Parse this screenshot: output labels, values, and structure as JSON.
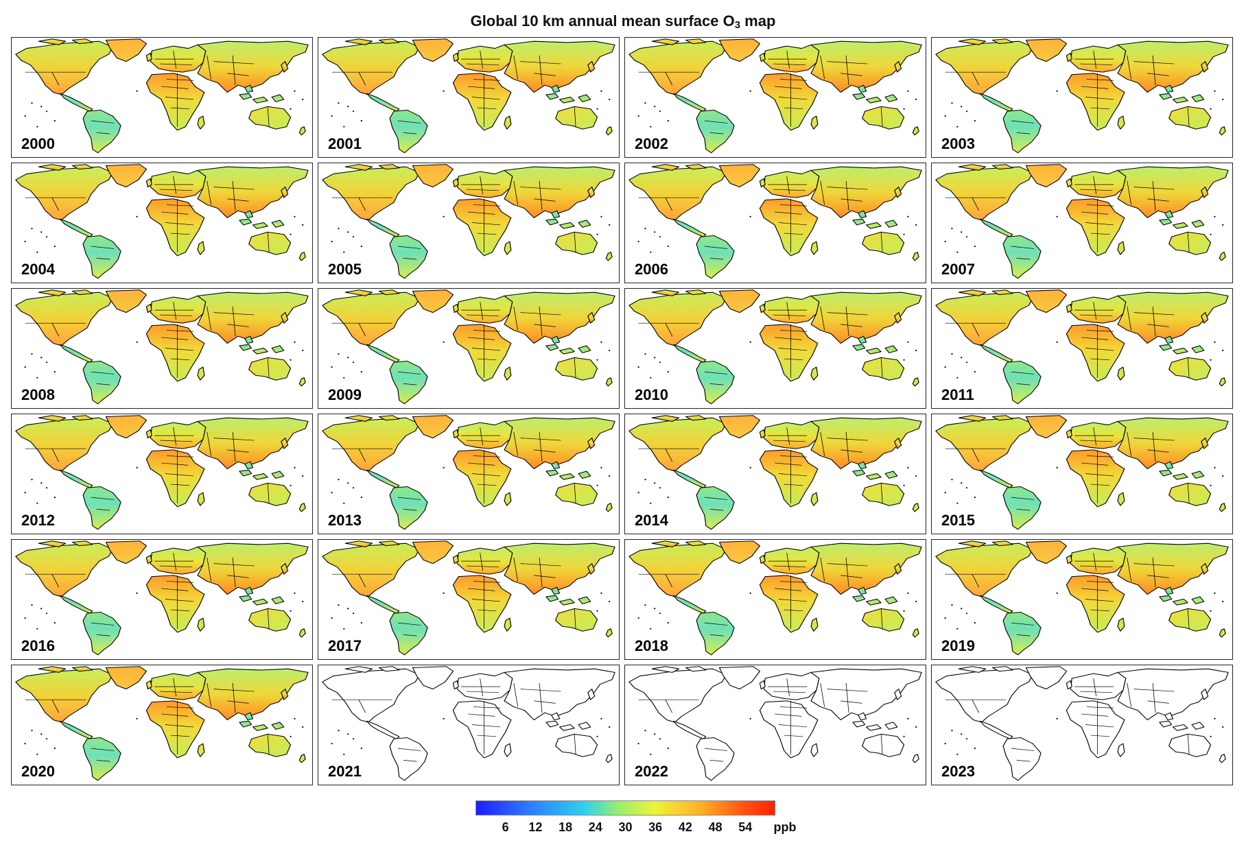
{
  "title": {
    "text": "Global 10 km annual mean surface O",
    "subscript": "3",
    "suffix": " map"
  },
  "panels": [
    {
      "year": "2000",
      "has_data": true
    },
    {
      "year": "2001",
      "has_data": true
    },
    {
      "year": "2002",
      "has_data": true
    },
    {
      "year": "2003",
      "has_data": true
    },
    {
      "year": "2004",
      "has_data": true
    },
    {
      "year": "2005",
      "has_data": true
    },
    {
      "year": "2006",
      "has_data": true
    },
    {
      "year": "2007",
      "has_data": true
    },
    {
      "year": "2008",
      "has_data": true
    },
    {
      "year": "2009",
      "has_data": true
    },
    {
      "year": "2010",
      "has_data": true
    },
    {
      "year": "2011",
      "has_data": true
    },
    {
      "year": "2012",
      "has_data": true
    },
    {
      "year": "2013",
      "has_data": true
    },
    {
      "year": "2014",
      "has_data": true
    },
    {
      "year": "2015",
      "has_data": true
    },
    {
      "year": "2016",
      "has_data": true
    },
    {
      "year": "2017",
      "has_data": true
    },
    {
      "year": "2018",
      "has_data": true
    },
    {
      "year": "2019",
      "has_data": true
    },
    {
      "year": "2020",
      "has_data": true
    },
    {
      "year": "2021",
      "has_data": false
    },
    {
      "year": "2022",
      "has_data": false
    },
    {
      "year": "2023",
      "has_data": false
    }
  ],
  "colorbar": {
    "ticks": [
      "6",
      "12",
      "18",
      "24",
      "30",
      "36",
      "42",
      "48",
      "54"
    ],
    "unit": "ppb",
    "range": [
      0,
      60
    ],
    "colors": [
      "#1f1cff",
      "#2d7dff",
      "#2fd0ee",
      "#9cf06a",
      "#eef238",
      "#ffb227",
      "#ff5212",
      "#ff2200"
    ]
  }
}
